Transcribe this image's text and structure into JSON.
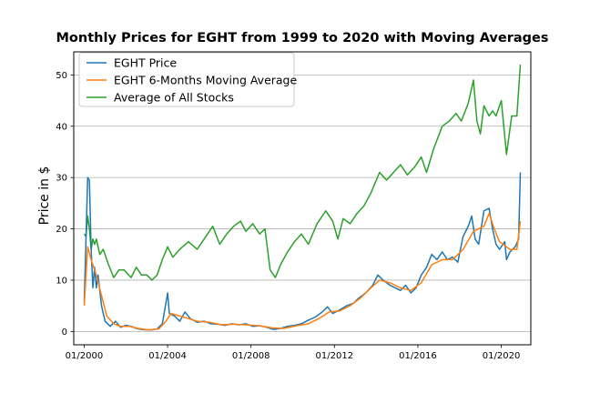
{
  "chart_data": {
    "type": "line",
    "title": "Monthly Prices for EGHT from 1999 to 2020 with Moving Averages",
    "xlabel": "",
    "ylabel": "Price in $",
    "x_tick_labels": [
      "01/2000",
      "01/2004",
      "01/2008",
      "01/2012",
      "01/2016",
      "01/2020"
    ],
    "y_ticks": [
      0,
      10,
      20,
      30,
      40,
      50
    ],
    "xlim": [
      "1999-07",
      "2021-06"
    ],
    "ylim": [
      -2.6,
      54.5
    ],
    "grid": "horizontal",
    "legend_position": "top-left",
    "colors": {
      "EGHT Price": "#1f77b4",
      "EGHT 6-Months Moving Average": "#ff7f0e",
      "Average of All Stocks": "#2ca02c"
    },
    "series": [
      {
        "name": "EGHT Price",
        "points": [
          [
            "2000-01",
            5.5
          ],
          [
            "2000-03",
            30.0
          ],
          [
            "2000-04",
            29.5
          ],
          [
            "2000-05",
            16
          ],
          [
            "2000-06",
            8.5
          ],
          [
            "2000-07",
            12.5
          ],
          [
            "2000-08",
            8.5
          ],
          [
            "2000-09",
            11
          ],
          [
            "2000-11",
            5
          ],
          [
            "2001-01",
            2
          ],
          [
            "2001-04",
            1
          ],
          [
            "2001-07",
            2
          ],
          [
            "2001-10",
            0.8
          ],
          [
            "2002-01",
            1.2
          ],
          [
            "2002-04",
            1
          ],
          [
            "2002-07",
            0.6
          ],
          [
            "2002-10",
            0.4
          ],
          [
            "2003-01",
            0.3
          ],
          [
            "2003-04",
            0.3
          ],
          [
            "2003-07",
            0.5
          ],
          [
            "2003-10",
            1.5
          ],
          [
            "2004-01",
            7.5
          ],
          [
            "2004-02",
            3.5
          ],
          [
            "2004-05",
            3
          ],
          [
            "2004-08",
            2
          ],
          [
            "2004-11",
            3.8
          ],
          [
            "2005-02",
            2.5
          ],
          [
            "2005-06",
            1.8
          ],
          [
            "2005-10",
            2
          ],
          [
            "2006-02",
            1.5
          ],
          [
            "2006-06",
            1.4
          ],
          [
            "2006-10",
            1.2
          ],
          [
            "2007-02",
            1.5
          ],
          [
            "2007-06",
            1.3
          ],
          [
            "2007-10",
            1.5
          ],
          [
            "2008-02",
            1
          ],
          [
            "2008-06",
            1.1
          ],
          [
            "2008-10",
            0.8
          ],
          [
            "2009-02",
            0.4
          ],
          [
            "2009-06",
            0.6
          ],
          [
            "2009-10",
            1.0
          ],
          [
            "2010-02",
            1.2
          ],
          [
            "2010-06",
            1.5
          ],
          [
            "2010-10",
            2.2
          ],
          [
            "2011-02",
            2.8
          ],
          [
            "2011-06",
            3.8
          ],
          [
            "2011-09",
            4.8
          ],
          [
            "2011-12",
            3.5
          ],
          [
            "2012-04",
            4.2
          ],
          [
            "2012-08",
            5
          ],
          [
            "2012-12",
            5.5
          ],
          [
            "2013-03",
            6.5
          ],
          [
            "2013-07",
            7.5
          ],
          [
            "2013-11",
            9
          ],
          [
            "2014-02",
            11
          ],
          [
            "2014-05",
            10
          ],
          [
            "2014-09",
            9
          ],
          [
            "2014-12",
            8.5
          ],
          [
            "2015-03",
            8
          ],
          [
            "2015-06",
            9
          ],
          [
            "2015-09",
            7.5
          ],
          [
            "2015-12",
            8.5
          ],
          [
            "2016-03",
            11
          ],
          [
            "2016-06",
            12.5
          ],
          [
            "2016-09",
            15
          ],
          [
            "2016-12",
            14
          ],
          [
            "2017-03",
            15.5
          ],
          [
            "2017-06",
            14
          ],
          [
            "2017-09",
            14.5
          ],
          [
            "2017-12",
            13.5
          ],
          [
            "2018-03",
            18.5
          ],
          [
            "2018-06",
            20.5
          ],
          [
            "2018-08",
            22.5
          ],
          [
            "2018-10",
            18
          ],
          [
            "2018-12",
            17
          ],
          [
            "2019-03",
            23.5
          ],
          [
            "2019-06",
            24
          ],
          [
            "2019-08",
            20
          ],
          [
            "2019-10",
            17
          ],
          [
            "2019-12",
            16
          ],
          [
            "2020-03",
            17.5
          ],
          [
            "2020-04",
            14
          ],
          [
            "2020-06",
            15.5
          ],
          [
            "2020-09",
            16.5
          ],
          [
            "2020-11",
            18
          ],
          [
            "2020-12",
            31
          ]
        ]
      },
      {
        "name": "EGHT 6-Months Moving Average",
        "points": [
          [
            "2000-01",
            5.0
          ],
          [
            "2000-03",
            16.5
          ],
          [
            "2000-05",
            14
          ],
          [
            "2000-08",
            11
          ],
          [
            "2000-11",
            7
          ],
          [
            "2001-02",
            3
          ],
          [
            "2001-06",
            1.5
          ],
          [
            "2001-10",
            1
          ],
          [
            "2002-03",
            1
          ],
          [
            "2002-08",
            0.6
          ],
          [
            "2003-02",
            0.3
          ],
          [
            "2003-08",
            0.5
          ],
          [
            "2003-12",
            2
          ],
          [
            "2004-03",
            3.5
          ],
          [
            "2004-08",
            3
          ],
          [
            "2005-01",
            2.5
          ],
          [
            "2005-06",
            2
          ],
          [
            "2006-01",
            1.8
          ],
          [
            "2006-08",
            1.3
          ],
          [
            "2007-03",
            1.4
          ],
          [
            "2007-10",
            1.3
          ],
          [
            "2008-06",
            1.1
          ],
          [
            "2009-01",
            0.7
          ],
          [
            "2009-08",
            0.6
          ],
          [
            "2010-03",
            1.1
          ],
          [
            "2010-10",
            1.5
          ],
          [
            "2011-04",
            2.5
          ],
          [
            "2011-10",
            3.8
          ],
          [
            "2012-04",
            4
          ],
          [
            "2012-10",
            5
          ],
          [
            "2013-04",
            6.5
          ],
          [
            "2013-10",
            8.5
          ],
          [
            "2014-03",
            10
          ],
          [
            "2014-09",
            9.5
          ],
          [
            "2015-03",
            8.5
          ],
          [
            "2015-09",
            8
          ],
          [
            "2016-03",
            9.5
          ],
          [
            "2016-09",
            13
          ],
          [
            "2017-03",
            14
          ],
          [
            "2017-09",
            14
          ],
          [
            "2018-03",
            16
          ],
          [
            "2018-09",
            19.5
          ],
          [
            "2019-03",
            20.5
          ],
          [
            "2019-06",
            23
          ],
          [
            "2019-09",
            20
          ],
          [
            "2019-12",
            17.5
          ],
          [
            "2020-06",
            16
          ],
          [
            "2020-10",
            16
          ],
          [
            "2020-12",
            21.5
          ]
        ]
      },
      {
        "name": "Average of All Stocks",
        "points": [
          [
            "2000-01",
            19
          ],
          [
            "2000-02",
            18.5
          ],
          [
            "2000-03",
            22.5
          ],
          [
            "2000-04",
            20
          ],
          [
            "2000-05",
            16
          ],
          [
            "2000-06",
            18
          ],
          [
            "2000-07",
            17
          ],
          [
            "2000-08",
            18
          ],
          [
            "2000-10",
            15
          ],
          [
            "2000-12",
            16
          ],
          [
            "2001-03",
            13
          ],
          [
            "2001-06",
            10.5
          ],
          [
            "2001-09",
            12
          ],
          [
            "2001-12",
            12
          ],
          [
            "2002-04",
            10.5
          ],
          [
            "2002-07",
            12.5
          ],
          [
            "2002-10",
            11
          ],
          [
            "2003-01",
            11
          ],
          [
            "2003-04",
            10
          ],
          [
            "2003-07",
            11
          ],
          [
            "2003-10",
            14
          ],
          [
            "2004-01",
            16.5
          ],
          [
            "2004-04",
            14.5
          ],
          [
            "2004-08",
            16
          ],
          [
            "2005-01",
            17.5
          ],
          [
            "2005-06",
            16
          ],
          [
            "2005-10",
            18
          ],
          [
            "2006-03",
            20.5
          ],
          [
            "2006-07",
            17
          ],
          [
            "2006-11",
            19
          ],
          [
            "2007-03",
            20.5
          ],
          [
            "2007-07",
            21.5
          ],
          [
            "2007-10",
            19.5
          ],
          [
            "2008-02",
            21
          ],
          [
            "2008-06",
            19
          ],
          [
            "2008-09",
            20
          ],
          [
            "2008-12",
            12
          ],
          [
            "2009-03",
            10.5
          ],
          [
            "2009-06",
            13
          ],
          [
            "2009-10",
            15.5
          ],
          [
            "2010-02",
            17.5
          ],
          [
            "2010-06",
            19
          ],
          [
            "2010-10",
            17
          ],
          [
            "2011-03",
            21
          ],
          [
            "2011-08",
            23.5
          ],
          [
            "2011-12",
            21.5
          ],
          [
            "2012-03",
            18
          ],
          [
            "2012-06",
            22
          ],
          [
            "2012-10",
            21
          ],
          [
            "2013-02",
            23
          ],
          [
            "2013-06",
            24.5
          ],
          [
            "2013-10",
            27
          ],
          [
            "2014-03",
            31
          ],
          [
            "2014-07",
            29.5
          ],
          [
            "2014-11",
            31
          ],
          [
            "2015-03",
            32.5
          ],
          [
            "2015-07",
            30.5
          ],
          [
            "2015-11",
            32
          ],
          [
            "2016-03",
            34
          ],
          [
            "2016-06",
            31
          ],
          [
            "2016-10",
            35.5
          ],
          [
            "2017-03",
            40
          ],
          [
            "2017-07",
            41
          ],
          [
            "2017-11",
            42.5
          ],
          [
            "2018-02",
            41
          ],
          [
            "2018-06",
            44.5
          ],
          [
            "2018-09",
            49
          ],
          [
            "2018-11",
            41
          ],
          [
            "2019-01",
            38.5
          ],
          [
            "2019-03",
            44
          ],
          [
            "2019-06",
            42
          ],
          [
            "2019-08",
            43
          ],
          [
            "2019-10",
            42
          ],
          [
            "2020-01",
            45
          ],
          [
            "2020-04",
            34.5
          ],
          [
            "2020-07",
            42
          ],
          [
            "2020-10",
            42
          ],
          [
            "2020-12",
            52
          ]
        ]
      }
    ]
  }
}
